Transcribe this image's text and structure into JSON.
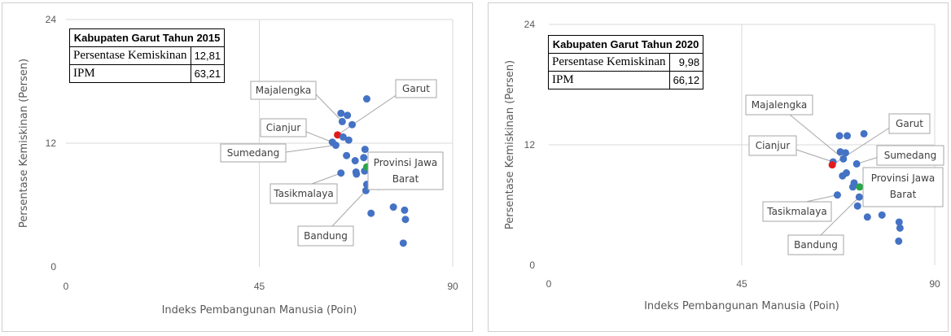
{
  "chart_data": [
    {
      "type": "scatter",
      "xlabel": "Indeks Pembangunan Manusia (Poin)",
      "ylabel": "Persentase Kemiskinan (Persen)",
      "xlim": [
        0,
        90
      ],
      "ylim": [
        0,
        24
      ],
      "xticks": [
        "0",
        "45",
        "90"
      ],
      "yticks": [
        "0",
        "12",
        "24"
      ],
      "info_table": {
        "title": "Kabupaten Garut Tahun 2015",
        "rows": [
          {
            "label": "Persentase Kemiskinan",
            "value": "12,81"
          },
          {
            "label": "IPM",
            "value": "63,21"
          }
        ]
      },
      "points": [
        {
          "x": 70.0,
          "y": 16.3,
          "color": "#4472c4"
        },
        {
          "x": 64.0,
          "y": 14.9,
          "color": "#4472c4"
        },
        {
          "x": 65.5,
          "y": 14.7,
          "color": "#4472c4"
        },
        {
          "x": 64.3,
          "y": 14.1,
          "color": "#4472c4"
        },
        {
          "x": 66.6,
          "y": 13.8,
          "color": "#4472c4"
        },
        {
          "x": 63.2,
          "y": 12.8,
          "color": "#e31a1c"
        },
        {
          "x": 64.5,
          "y": 12.6,
          "color": "#4472c4"
        },
        {
          "x": 65.8,
          "y": 12.3,
          "color": "#4472c4"
        },
        {
          "x": 62.0,
          "y": 12.1,
          "color": "#4472c4"
        },
        {
          "x": 62.8,
          "y": 11.8,
          "color": "#4472c4"
        },
        {
          "x": 69.6,
          "y": 11.4,
          "color": "#4472c4"
        },
        {
          "x": 65.3,
          "y": 10.8,
          "color": "#4472c4"
        },
        {
          "x": 69.3,
          "y": 10.6,
          "color": "#4472c4"
        },
        {
          "x": 67.3,
          "y": 10.3,
          "color": "#4472c4"
        },
        {
          "x": 67.5,
          "y": 9.2,
          "color": "#4472c4"
        },
        {
          "x": 69.5,
          "y": 9.3,
          "color": "#4472c4"
        },
        {
          "x": 70.0,
          "y": 9.7,
          "color": "#28a745"
        },
        {
          "x": 64.0,
          "y": 9.1,
          "color": "#4472c4"
        },
        {
          "x": 67.6,
          "y": 9.0,
          "color": "#4472c4"
        },
        {
          "x": 70.0,
          "y": 8.0,
          "color": "#4472c4"
        },
        {
          "x": 72.8,
          "y": 7.8,
          "color": "#4472c4"
        },
        {
          "x": 69.8,
          "y": 7.4,
          "color": "#4472c4"
        },
        {
          "x": 76.2,
          "y": 5.8,
          "color": "#4472c4"
        },
        {
          "x": 78.8,
          "y": 5.5,
          "color": "#4472c4"
        },
        {
          "x": 71.0,
          "y": 5.2,
          "color": "#4472c4"
        },
        {
          "x": 79.0,
          "y": 4.6,
          "color": "#4472c4"
        },
        {
          "x": 78.5,
          "y": 2.3,
          "color": "#4472c4"
        }
      ],
      "callouts": [
        {
          "label": "Majalengka",
          "x": 64.3,
          "y": 14.1
        },
        {
          "label": "Garut",
          "x": 63.2,
          "y": 12.8
        },
        {
          "label": "Cianjur",
          "x": 62.0,
          "y": 12.1
        },
        {
          "label": "Sumedang",
          "x": 62.8,
          "y": 11.8
        },
        {
          "label": "Provinsi Jawa Barat",
          "x": 70.0,
          "y": 9.7
        },
        {
          "label": "Tasikmalaya",
          "x": 64.0,
          "y": 9.1
        },
        {
          "label": "Bandung",
          "x": 69.8,
          "y": 7.4
        }
      ]
    },
    {
      "type": "scatter",
      "xlabel": "Indeks Pembangunan Manusia (Poin)",
      "ylabel": "Persentase Kemiskinan (Persen)",
      "xlim": [
        0,
        90
      ],
      "ylim": [
        0,
        24
      ],
      "xticks": [
        "0",
        "45",
        "90"
      ],
      "yticks": [
        "0",
        "12",
        "24"
      ],
      "info_table": {
        "title": "Kabupaten Garut Tahun 2020",
        "rows": [
          {
            "label": "Persentase Kemiskinan",
            "value": "9,98"
          },
          {
            "label": "IPM",
            "value": "66,12"
          }
        ]
      },
      "points": [
        {
          "x": 67.8,
          "y": 12.9,
          "color": "#4472c4"
        },
        {
          "x": 69.6,
          "y": 12.9,
          "color": "#4472c4"
        },
        {
          "x": 73.5,
          "y": 13.1,
          "color": "#4472c4"
        },
        {
          "x": 68.0,
          "y": 11.3,
          "color": "#4472c4"
        },
        {
          "x": 69.2,
          "y": 11.2,
          "color": "#4472c4"
        },
        {
          "x": 68.7,
          "y": 10.6,
          "color": "#4472c4"
        },
        {
          "x": 66.3,
          "y": 10.3,
          "color": "#4472c4"
        },
        {
          "x": 66.1,
          "y": 10.0,
          "color": "#e31a1c"
        },
        {
          "x": 71.8,
          "y": 10.1,
          "color": "#4472c4"
        },
        {
          "x": 69.4,
          "y": 9.2,
          "color": "#4472c4"
        },
        {
          "x": 68.5,
          "y": 8.9,
          "color": "#4472c4"
        },
        {
          "x": 71.2,
          "y": 8.2,
          "color": "#4472c4"
        },
        {
          "x": 70.9,
          "y": 7.8,
          "color": "#4472c4"
        },
        {
          "x": 72.5,
          "y": 7.8,
          "color": "#28a745"
        },
        {
          "x": 67.3,
          "y": 7.0,
          "color": "#4472c4"
        },
        {
          "x": 72.4,
          "y": 6.8,
          "color": "#4472c4"
        },
        {
          "x": 72.0,
          "y": 5.9,
          "color": "#4472c4"
        },
        {
          "x": 74.3,
          "y": 4.8,
          "color": "#4472c4"
        },
        {
          "x": 77.7,
          "y": 5.0,
          "color": "#4472c4"
        },
        {
          "x": 81.7,
          "y": 4.3,
          "color": "#4472c4"
        },
        {
          "x": 81.9,
          "y": 3.7,
          "color": "#4472c4"
        },
        {
          "x": 81.6,
          "y": 2.4,
          "color": "#4472c4"
        }
      ],
      "callouts": [
        {
          "label": "Majalengka",
          "x": 68.7,
          "y": 10.6
        },
        {
          "label": "Garut",
          "x": 66.1,
          "y": 10.0
        },
        {
          "label": "Cianjur",
          "x": 66.3,
          "y": 10.3
        },
        {
          "label": "Sumedang",
          "x": 71.8,
          "y": 10.1
        },
        {
          "label": "Provinsi Jawa Barat",
          "x": 72.5,
          "y": 7.8
        },
        {
          "label": "Tasikmalaya",
          "x": 67.3,
          "y": 7.0
        },
        {
          "label": "Bandung",
          "x": 72.4,
          "y": 6.8
        }
      ]
    }
  ]
}
